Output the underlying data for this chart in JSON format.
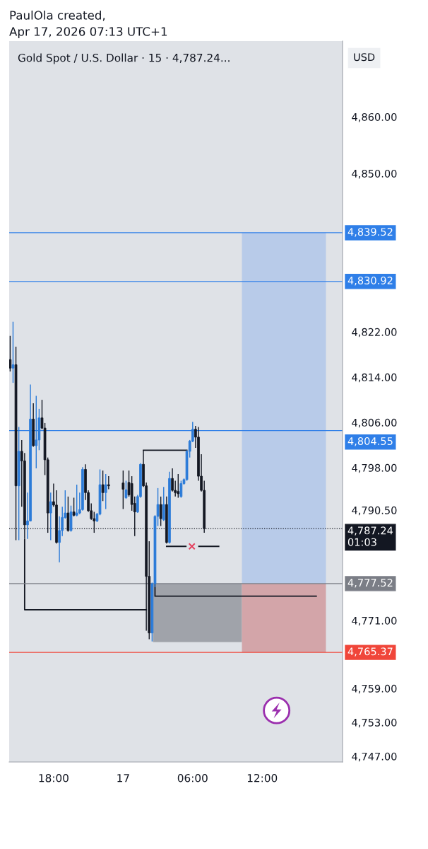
{
  "chart_data": {
    "type": "candlestick",
    "title": "Gold Spot / U.S. Dollar · 15 · 4,787.24...",
    "ylabel": "USD",
    "annotations": [
      "PaulOla created,",
      "Apr 17, 2026 07:13 UTC+1"
    ],
    "x": [
      "2026-04-16T14:15",
      "2026-04-16T14:30",
      "2026-04-16T14:45",
      "2026-04-16T15:00",
      "2026-04-16T15:15",
      "2026-04-16T15:30",
      "2026-04-16T15:45",
      "2026-04-16T16:00",
      "2026-04-16T16:15",
      "2026-04-16T16:30",
      "2026-04-16T16:45",
      "2026-04-16T17:00",
      "2026-04-16T17:15",
      "2026-04-16T17:30",
      "2026-04-16T17:45",
      "2026-04-16T18:00",
      "2026-04-16T18:15",
      "2026-04-16T18:30",
      "2026-04-16T18:45",
      "2026-04-16T19:00",
      "2026-04-16T19:15",
      "2026-04-16T19:30",
      "2026-04-16T19:45",
      "2026-04-16T20:00",
      "2026-04-16T20:15",
      "2026-04-16T20:30",
      "2026-04-16T20:45",
      "2026-04-16T21:00",
      "2026-04-16T21:15",
      "2026-04-16T21:30",
      "2026-04-16T21:45",
      "2026-04-16T22:00",
      "2026-04-16T22:15",
      "2026-04-16T22:30",
      "2026-04-16T22:45",
      "2026-04-17T00:00",
      "2026-04-17T00:15",
      "2026-04-17T00:30",
      "2026-04-17T00:45",
      "2026-04-17T01:00",
      "2026-04-17T01:15",
      "2026-04-17T01:30",
      "2026-04-17T01:45",
      "2026-04-17T02:00",
      "2026-04-17T02:15",
      "2026-04-17T02:30",
      "2026-04-17T02:45",
      "2026-04-17T03:00",
      "2026-04-17T03:15",
      "2026-04-17T03:30",
      "2026-04-17T03:45",
      "2026-04-17T04:00",
      "2026-04-17T04:15",
      "2026-04-17T04:30",
      "2026-04-17T04:45",
      "2026-04-17T05:00",
      "2026-04-17T05:15",
      "2026-04-17T05:30",
      "2026-04-17T05:45",
      "2026-04-17T06:00",
      "2026-04-17T06:15",
      "2026-04-17T06:30",
      "2026-04-17T06:45",
      "2026-04-17T07:00"
    ],
    "ohlc": [
      [
        4817.1,
        4821.3,
        4815.0,
        4815.6
      ],
      [
        4815.6,
        4823.8,
        4813.0,
        4816.2
      ],
      [
        4816.2,
        4819.4,
        4785.2,
        4794.8
      ],
      [
        4794.8,
        4805.2,
        4785.2,
        4800.9
      ],
      [
        4800.9,
        4802.9,
        4791.1,
        4799.2
      ],
      [
        4799.2,
        4800.6,
        4785.4,
        4787.9
      ],
      [
        4787.9,
        4793.6,
        4785.4,
        4788.6
      ],
      [
        4788.6,
        4812.7,
        4788.5,
        4806.6
      ],
      [
        4806.6,
        4809.4,
        4801.7,
        4801.9
      ],
      [
        4801.9,
        4810.7,
        4797.9,
        4802.9
      ],
      [
        4802.9,
        4808.4,
        4801.1,
        4806.8
      ],
      [
        4806.8,
        4810.0,
        4804.8,
        4805.0
      ],
      [
        4805.0,
        4805.9,
        4796.7,
        4799.4
      ],
      [
        4799.4,
        4799.8,
        4786.5,
        4790.0
      ],
      [
        4790.0,
        4793.6,
        4785.2,
        4792.0
      ],
      [
        4792.0,
        4795.2,
        4791.1,
        4791.4
      ],
      [
        4791.4,
        4794.0,
        4784.6,
        4784.8
      ],
      [
        4784.8,
        4789.4,
        4781.3,
        4786.9
      ],
      [
        4786.9,
        4791.1,
        4785.9,
        4789.2
      ],
      [
        4789.2,
        4794.0,
        4789.0,
        4790.0
      ],
      [
        4790.0,
        4792.9,
        4786.7,
        4786.9
      ],
      [
        4786.9,
        4791.3,
        4786.7,
        4790.2
      ],
      [
        4790.2,
        4792.7,
        4789.4,
        4789.6
      ],
      [
        4789.6,
        4795.0,
        4789.4,
        4790.0
      ],
      [
        4790.0,
        4793.6,
        4789.8,
        4790.6
      ],
      [
        4790.6,
        4798.1,
        4790.4,
        4797.7
      ],
      [
        4797.7,
        4798.6,
        4792.3,
        4793.6
      ],
      [
        4793.6,
        4794.0,
        4790.2,
        4790.4
      ],
      [
        4790.4,
        4791.7,
        4788.8,
        4789.0
      ],
      [
        4789.0,
        4790.2,
        4786.5,
        4788.6
      ],
      [
        4788.6,
        4790.0,
        4788.4,
        4789.8
      ],
      [
        4789.8,
        4797.7,
        4789.6,
        4795.0
      ],
      [
        4795.0,
        4797.5,
        4792.1,
        4793.6
      ],
      [
        4793.6,
        4796.9,
        4790.7,
        4795.0
      ],
      [
        4795.0,
        4796.5,
        4794.2,
        4794.8
      ],
      [
        4795.3,
        4797.5,
        4790.7,
        4794.2
      ],
      [
        4792.7,
        4795.7,
        4792.5,
        4794.1
      ],
      [
        4795.4,
        4797.5,
        4792.9,
        4793.2
      ],
      [
        4795.2,
        4796.5,
        4790.4,
        4791.5
      ],
      [
        4791.7,
        4792.9,
        4785.9,
        4790.2
      ],
      [
        4790.2,
        4793.2,
        4790.0,
        4792.9
      ],
      [
        4792.9,
        4798.8,
        4792.7,
        4798.6
      ],
      [
        4798.6,
        4801.1,
        4794.6,
        4794.8
      ],
      [
        4794.8,
        4795.4,
        4769.2,
        4778.8
      ],
      [
        4778.8,
        4785.0,
        4767.7,
        4768.8
      ],
      [
        4768.8,
        4777.7,
        4767.3,
        4777.5
      ],
      [
        4777.5,
        4789.6,
        4776.9,
        4789.4
      ],
      [
        4789.4,
        4794.4,
        4787.7,
        4791.5
      ],
      [
        4791.5,
        4792.9,
        4787.7,
        4789.0
      ],
      [
        4788.8,
        4794.6,
        4788.6,
        4791.5
      ],
      [
        4791.5,
        4792.9,
        4784.6,
        4784.8
      ],
      [
        4784.8,
        4797.3,
        4784.6,
        4796.1
      ],
      [
        4796.1,
        4797.9,
        4793.8,
        4794.0
      ],
      [
        4794.0,
        4795.7,
        4792.9,
        4793.6
      ],
      [
        4793.8,
        4796.9,
        4792.7,
        4793.4
      ],
      [
        4792.9,
        4795.7,
        4792.7,
        4795.2
      ],
      [
        4795.2,
        4796.1,
        4795.0,
        4795.9
      ],
      [
        4795.9,
        4801.1,
        4795.7,
        4800.9
      ],
      [
        4800.9,
        4802.9,
        4799.8,
        4802.7
      ],
      [
        4802.7,
        4806.1,
        4802.5,
        4804.8
      ],
      [
        4804.8,
        4805.4,
        4801.5,
        4803.4
      ],
      [
        4803.4,
        4805.2,
        4795.7,
        4796.5
      ],
      [
        4796.5,
        4800.4,
        4793.8,
        4794.0
      ],
      [
        4794.0,
        4795.7,
        4786.5,
        4787.24
      ]
    ],
    "colors": [
      "#131722",
      "#2b7bd8",
      "#131722",
      "#2b7bd8",
      "#131722",
      "#131722",
      "#2b7bd8",
      "#2b7bd8",
      "#131722",
      "#2b7bd8",
      "#2b7bd8",
      "#131722",
      "#131722",
      "#131722",
      "#2b7bd8",
      "#131722",
      "#131722",
      "#2b7bd8",
      "#2b7bd8",
      "#2b7bd8",
      "#131722",
      "#2b7bd8",
      "#131722",
      "#2b7bd8",
      "#2b7bd8",
      "#2b7bd8",
      "#131722",
      "#131722",
      "#131722",
      "#131722",
      "#2b7bd8",
      "#2b7bd8",
      "#131722",
      "#2b7bd8",
      "#131722",
      "#131722",
      "#2b7bd8",
      "#131722",
      "#131722",
      "#131722",
      "#2b7bd8",
      "#2b7bd8",
      "#131722",
      "#131722",
      "#131722",
      "#2b7bd8",
      "#2b7bd8",
      "#2b7bd8",
      "#131722",
      "#2b7bd8",
      "#131722",
      "#2b7bd8",
      "#131722",
      "#131722",
      "#131722",
      "#2b7bd8",
      "#2b7bd8",
      "#2b7bd8",
      "#2b7bd8",
      "#2b7bd8",
      "#131722",
      "#131722",
      "#131722",
      "#131722"
    ],
    "series": [
      {
        "type": "line",
        "x": [
          "2026-04-17T02:35",
          "2026-04-17T10:15"
        ],
        "values": [
          null,
          null
        ],
        "lower": [
          4767.2,
          4767.2
        ],
        "upper": [
          4777.52,
          4777.52
        ],
        "color": "#a0a3aa"
      },
      {
        "type": "line",
        "x": [
          "2026-04-17T10:15",
          "2026-04-17T17:30"
        ],
        "values": [
          null,
          null
        ],
        "lower": [
          4777.52,
          4777.52
        ],
        "upper": [
          4839.52,
          4839.52
        ],
        "color": "#b8cbe9"
      },
      {
        "type": "line",
        "x": [
          "2026-04-17T10:15",
          "2026-04-17T17:30"
        ],
        "values": [
          null,
          null
        ],
        "lower": [
          4765.37,
          4765.37
        ],
        "upper": [
          4777.52,
          4777.52
        ],
        "color": "#d3a5a9"
      },
      {
        "type": "line",
        "x": [
          "2026-04-16T15:30",
          "2026-04-16T15:30",
          "2026-04-17T02:00"
        ],
        "values": [
          4785.3,
          4772.9,
          4772.9
        ],
        "color": "#131722"
      },
      {
        "type": "line",
        "x": [
          "2026-04-17T01:45",
          "2026-04-17T05:30"
        ],
        "values": [
          4801.1,
          4801.1
        ],
        "color": "#131722"
      },
      {
        "type": "line",
        "x": [
          "2026-04-17T03:45",
          "2026-04-17T05:25",
          "2026-04-17T05:56",
          "2026-04-17T06:32",
          "2026-04-17T08:15"
        ],
        "values": [
          4784.1,
          4784.1,
          null,
          4784.1,
          4784.1
        ],
        "color": "#131722"
      },
      {
        "type": "scatter",
        "x": [
          "2026-04-17T05:56"
        ],
        "values": [
          4784.1
        ],
        "color": "#e5405e",
        "marker": "cross"
      },
      {
        "type": "line",
        "x": [
          "2026-04-17T02:45",
          "2026-04-17T02:45",
          "2026-04-17T16:40"
        ],
        "values": [
          4777.5,
          4775.3,
          4775.3
        ],
        "color": "#131722"
      }
    ],
    "ref_lines": [
      {
        "axis": "y",
        "value": 4839.52,
        "label": "4,839.52",
        "color": "#2f7fe8",
        "line_style": "solid"
      },
      {
        "axis": "y",
        "value": 4830.92,
        "label": "4,830.92",
        "color": "#2f7fe8",
        "line_style": "solid"
      },
      {
        "axis": "y",
        "value": 4804.55,
        "label": "4,804.55",
        "color": "#2f7fe8",
        "line_style": "solid"
      },
      {
        "axis": "y",
        "value": 4787.24,
        "label": "4,787.24\n01:03",
        "color": "#131722",
        "line_style": "dotted"
      },
      {
        "axis": "y",
        "value": 4777.52,
        "label": "4,777.52",
        "color": "#7b7e86",
        "line_style": "solid"
      },
      {
        "axis": "y",
        "value": 4765.37,
        "label": "4,765.37",
        "color": "#f0463a",
        "line_style": "solid"
      }
    ],
    "xlim": [
      "2026-04-16T14:10",
      "2026-04-17T18:56"
    ],
    "xticks": [
      {
        "value": "2026-04-16T18:00",
        "label": "18:00"
      },
      {
        "value": "2026-04-17T00:00",
        "label": "17"
      },
      {
        "value": "2026-04-17T06:00",
        "label": "06:00"
      },
      {
        "value": "2026-04-17T12:00",
        "label": "12:00"
      }
    ],
    "ylim": [
      4746.0,
      4873.4
    ],
    "yticks": [
      {
        "value": 4860,
        "label": "4,860.00"
      },
      {
        "value": 4850,
        "label": "4,850.00"
      },
      {
        "value": 4822,
        "label": "4,822.00"
      },
      {
        "value": 4814,
        "label": "4,814.00"
      },
      {
        "value": 4806,
        "label": "4,806.00"
      },
      {
        "value": 4798,
        "label": "4,798.00"
      },
      {
        "value": 4790.5,
        "label": "4,790.50"
      },
      {
        "value": 4771,
        "label": "4,771.00"
      },
      {
        "value": 4759,
        "label": "4,759.00"
      },
      {
        "value": 4753,
        "label": "4,753.00"
      },
      {
        "value": 4747,
        "label": "4,747.00"
      }
    ]
  }
}
